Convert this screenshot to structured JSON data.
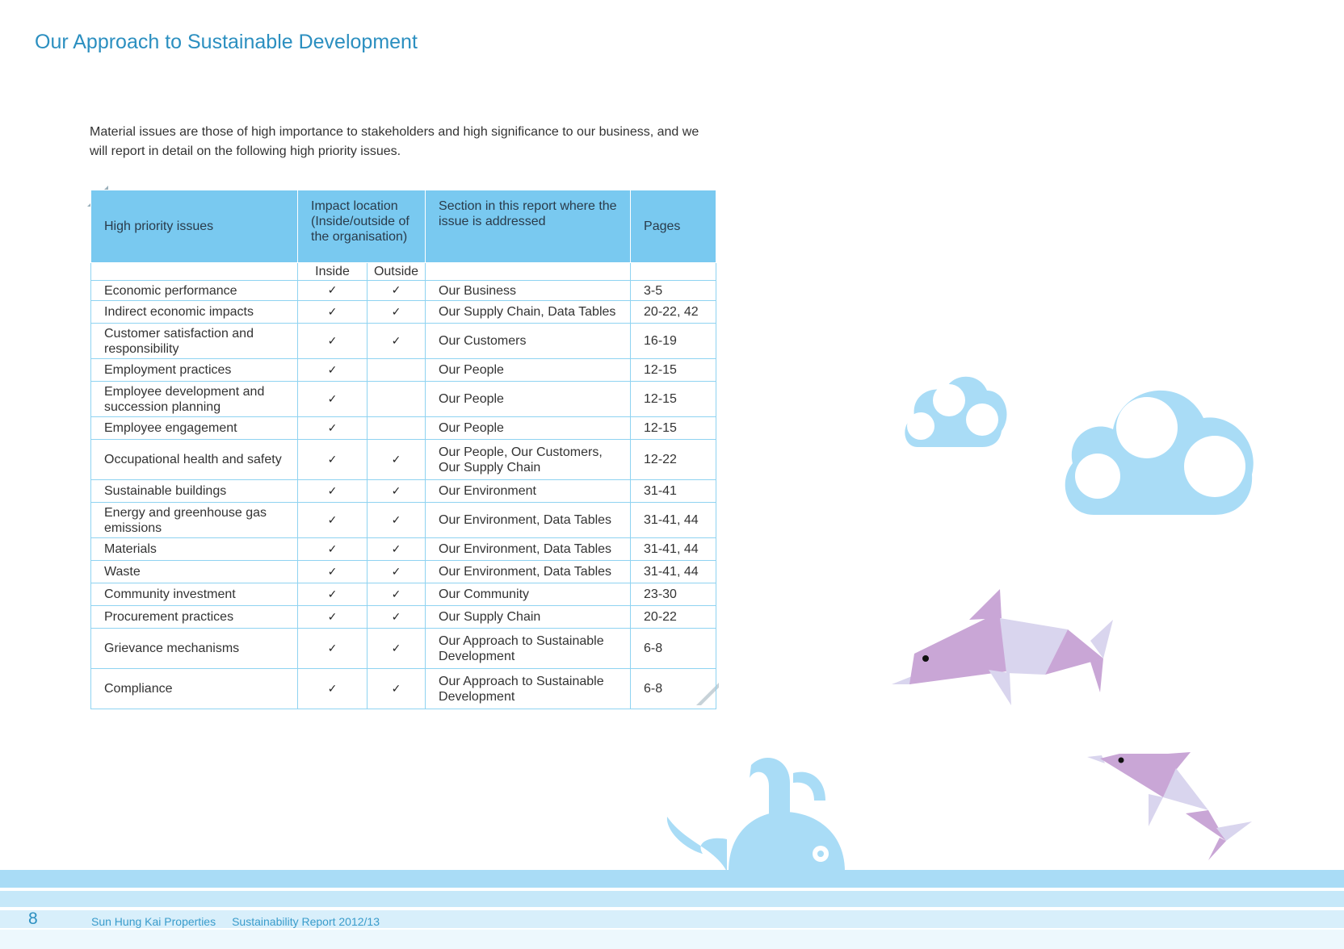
{
  "page": {
    "title": "Our Approach to Sustainable Development",
    "intro": "Material issues are those of high importance to stakeholders and high significance to our business, and we will report in detail on the following high priority issues."
  },
  "table": {
    "headers": {
      "issue": "High priority issues",
      "impact_location": "Impact location (Inside/outside of the organisation)",
      "section": "Section in this report where the issue is addressed",
      "pages": "Pages",
      "inside": "Inside",
      "outside": "Outside"
    },
    "check_glyph": "✓",
    "rows": [
      {
        "issue": "Economic performance",
        "inside": true,
        "outside": true,
        "section": "Our Business",
        "pages": "3-5"
      },
      {
        "issue": "Indirect economic impacts",
        "inside": true,
        "outside": true,
        "section": "Our Supply Chain, Data Tables",
        "pages": "20-22, 42"
      },
      {
        "issue": "Customer satisfaction and responsibility",
        "inside": true,
        "outside": true,
        "section": "Our Customers",
        "pages": "16-19"
      },
      {
        "issue": "Employment practices",
        "inside": true,
        "outside": false,
        "section": "Our People",
        "pages": "12-15"
      },
      {
        "issue": "Employee development and succession planning",
        "inside": true,
        "outside": false,
        "section": "Our People",
        "pages": "12-15"
      },
      {
        "issue": "Employee engagement",
        "inside": true,
        "outside": false,
        "section": "Our People",
        "pages": "12-15"
      },
      {
        "issue": "Occupational health and safety",
        "inside": true,
        "outside": true,
        "section": "Our People, Our Customers, Our Supply Chain",
        "pages": "12-22"
      },
      {
        "issue": "Sustainable buildings",
        "inside": true,
        "outside": true,
        "section": "Our Environment",
        "pages": "31-41"
      },
      {
        "issue": "Energy and greenhouse gas emissions",
        "inside": true,
        "outside": true,
        "section": "Our Environment, Data Tables",
        "pages": "31-41, 44"
      },
      {
        "issue": "Materials",
        "inside": true,
        "outside": true,
        "section": "Our Environment, Data Tables",
        "pages": "31-41, 44"
      },
      {
        "issue": "Waste",
        "inside": true,
        "outside": true,
        "section": "Our Environment, Data Tables",
        "pages": "31-41, 44"
      },
      {
        "issue": "Community investment",
        "inside": true,
        "outside": true,
        "section": "Our Community",
        "pages": "23-30"
      },
      {
        "issue": "Procurement practices",
        "inside": true,
        "outside": true,
        "section": "Our Supply Chain",
        "pages": "20-22"
      },
      {
        "issue": "Grievance mechanisms",
        "inside": true,
        "outside": true,
        "section": "Our Approach to Sustainable Development",
        "pages": "6-8"
      },
      {
        "issue": "Compliance",
        "inside": true,
        "outside": true,
        "section": "Our Approach to Sustainable Development",
        "pages": "6-8"
      }
    ]
  },
  "footer": {
    "page_number": "8",
    "company": "Sun Hung Kai Properties",
    "report": "Sustainability Report 2012/13"
  },
  "colors": {
    "title_blue": "#2b8fc0",
    "header_blue": "#79c9f0",
    "border_blue": "#8fd3f1",
    "cloud_blue": "#a9dcf6",
    "dolphin_pink": "#c9a6d6",
    "dolphin_lavender": "#d9d5ee"
  },
  "illustrations": [
    "cloud-icon",
    "dolphin-icon",
    "whale-icon",
    "wave-stripes"
  ]
}
